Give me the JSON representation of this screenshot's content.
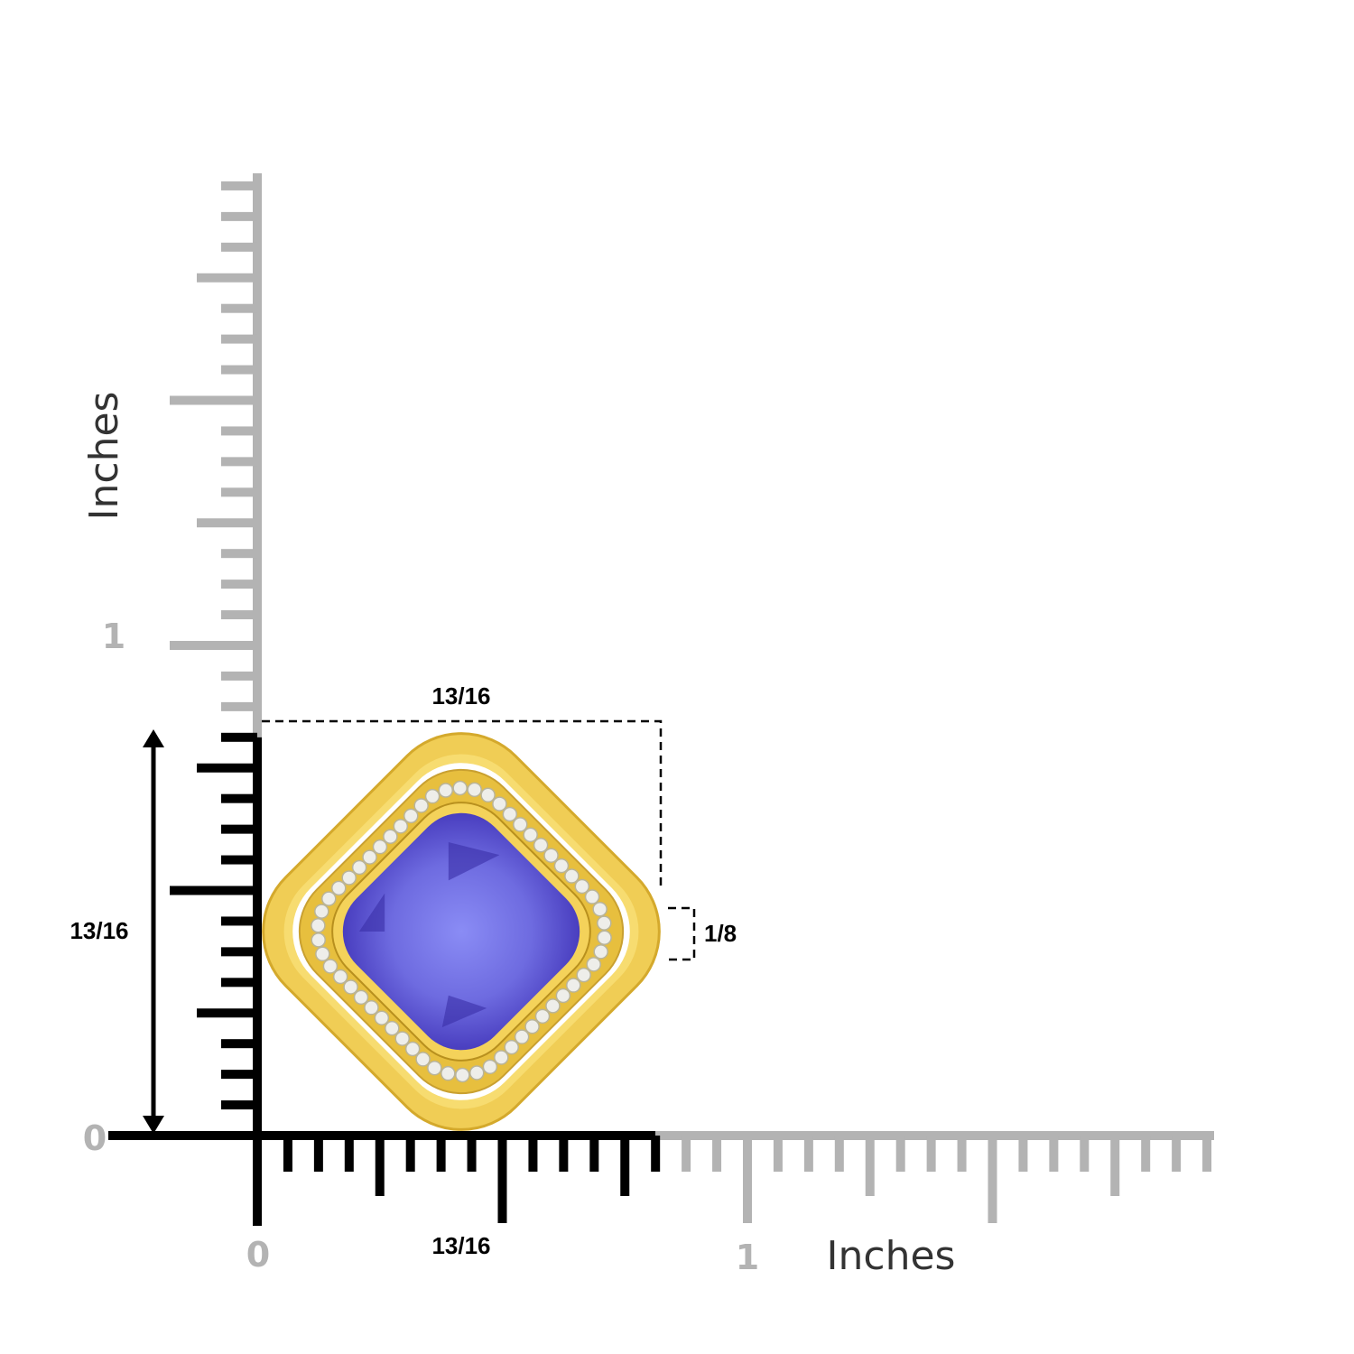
{
  "units": "Inches",
  "vertical_axis": {
    "title": "Inches",
    "tick_labels": [
      "0",
      "1"
    ]
  },
  "horizontal_axis": {
    "title": "Inches",
    "tick_labels": [
      "0",
      "1"
    ]
  },
  "dimensions": {
    "width_top": "13/16",
    "width_bottom": "13/16",
    "height_left": "13/16",
    "depth_right": "1/8"
  },
  "colors": {
    "ruler_gray": "#b3b3b3",
    "ruler_black": "#000000",
    "gold": "#e8c24a",
    "stone": "#6f6ee0"
  }
}
